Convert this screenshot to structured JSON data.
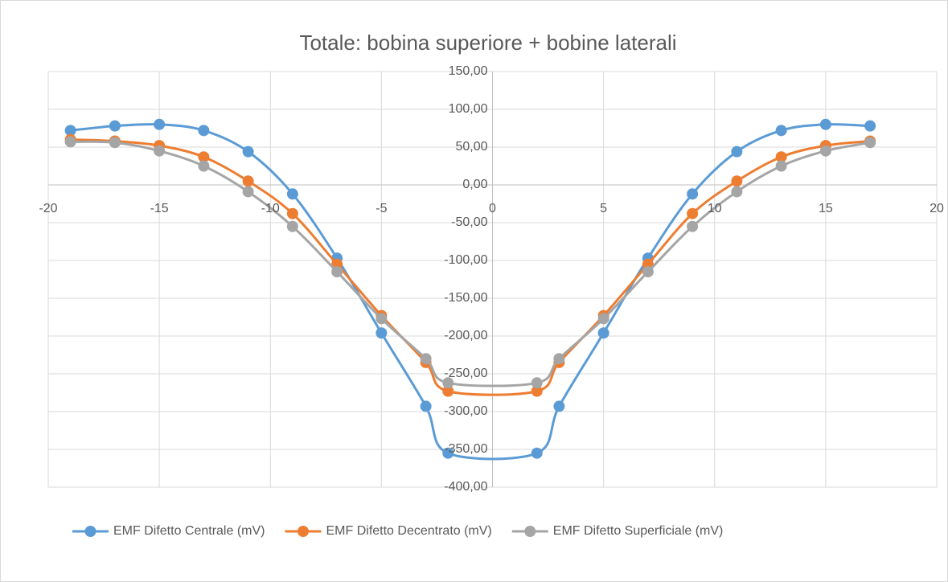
{
  "chart_data": {
    "type": "line",
    "smooth": true,
    "title": "Totale: bobina superiore + bobine laterali",
    "x": [
      -19,
      -17,
      -15,
      -13,
      -11,
      -9,
      -7,
      -5,
      -3,
      -2,
      2,
      3,
      5,
      7,
      9,
      11,
      13,
      15,
      17
    ],
    "series": [
      {
        "name": "EMF Difetto Centrale (mV)",
        "color": "#5b9bd5",
        "values": [
          72,
          78,
          80,
          72,
          44,
          -12,
          -97,
          -196,
          -293,
          -355,
          -355,
          -293,
          -196,
          -97,
          -12,
          44,
          72,
          80,
          78
        ]
      },
      {
        "name": "EMF Difetto Decentrato (mV)",
        "color": "#ed7d31",
        "values": [
          60,
          58,
          52,
          37,
          5,
          -38,
          -105,
          -173,
          -235,
          -273,
          -273,
          -235,
          -173,
          -105,
          -38,
          5,
          37,
          52,
          58
        ]
      },
      {
        "name": "EMF Difetto Superficiale (mV)",
        "color": "#a5a5a5",
        "values": [
          57,
          56,
          45,
          25,
          -9,
          -55,
          -115,
          -177,
          -230,
          -262,
          -262,
          -230,
          -177,
          -115,
          -55,
          -9,
          25,
          45,
          56
        ]
      }
    ],
    "xlim": [
      -20,
      20
    ],
    "xticks": [
      -20,
      -15,
      -10,
      -5,
      0,
      5,
      10,
      15,
      20
    ],
    "ylim": [
      -400,
      150
    ],
    "yticks": [
      {
        "value": -400,
        "label": "-400,00"
      },
      {
        "value": -350,
        "label": "-350,00"
      },
      {
        "value": -300,
        "label": "-300,00"
      },
      {
        "value": -250,
        "label": "-250,00"
      },
      {
        "value": -200,
        "label": "-200,00"
      },
      {
        "value": -150,
        "label": "-150,00"
      },
      {
        "value": -100,
        "label": "-100,00"
      },
      {
        "value": -50,
        "label": "-50,00"
      },
      {
        "value": 0,
        "label": "0,00"
      },
      {
        "value": 50,
        "label": "50,00"
      },
      {
        "value": 100,
        "label": "100,00"
      },
      {
        "value": 150,
        "label": "150,00"
      }
    ],
    "grid": true,
    "legend": "bottom"
  }
}
